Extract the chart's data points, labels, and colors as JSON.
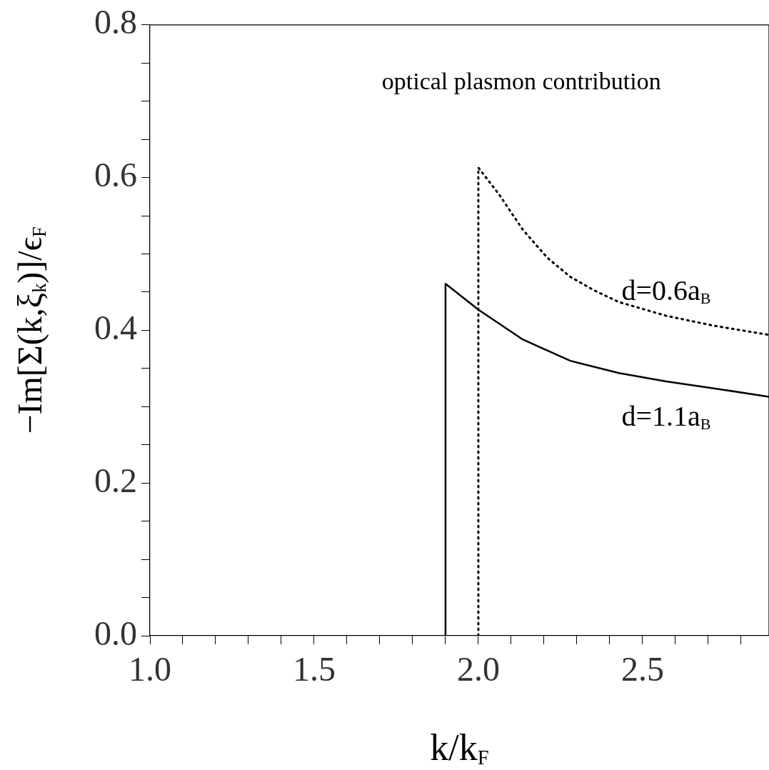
{
  "chart_data": {
    "type": "line",
    "xlabel": "k/k$_{F}$",
    "ylabel": "−Im[Σ(k,ξ$_{k}$)]/ϵ$_{F}$",
    "annotations": [
      "optical plasmon contribution"
    ],
    "xlim": [
      1.0,
      2.885
    ],
    "ylim": [
      0.0,
      0.8
    ],
    "xticks": [
      {
        "value": 1.0,
        "label": "1.0"
      },
      {
        "value": 1.1,
        "label": null
      },
      {
        "value": 1.2,
        "label": null
      },
      {
        "value": 1.3,
        "label": null
      },
      {
        "value": 1.4,
        "label": null
      },
      {
        "value": 1.5,
        "label": "1.5"
      },
      {
        "value": 1.6,
        "label": null
      },
      {
        "value": 1.7,
        "label": null
      },
      {
        "value": 1.8,
        "label": null
      },
      {
        "value": 1.9,
        "label": null
      },
      {
        "value": 2.0,
        "label": "2.0"
      },
      {
        "value": 2.1,
        "label": null
      },
      {
        "value": 2.2,
        "label": null
      },
      {
        "value": 2.3,
        "label": null
      },
      {
        "value": 2.4,
        "label": null
      },
      {
        "value": 2.5,
        "label": "2.5"
      },
      {
        "value": 2.6,
        "label": null
      },
      {
        "value": 2.7,
        "label": null
      },
      {
        "value": 2.8,
        "label": null
      }
    ],
    "yticks": [
      {
        "value": 0.0,
        "label": "0.0"
      },
      {
        "value": 0.05,
        "label": null
      },
      {
        "value": 0.1,
        "label": null
      },
      {
        "value": 0.15,
        "label": null
      },
      {
        "value": 0.2,
        "label": "0.2"
      },
      {
        "value": 0.25,
        "label": null
      },
      {
        "value": 0.3,
        "label": null
      },
      {
        "value": 0.35,
        "label": null
      },
      {
        "value": 0.4,
        "label": "0.4"
      },
      {
        "value": 0.45,
        "label": null
      },
      {
        "value": 0.5,
        "label": null
      },
      {
        "value": 0.55,
        "label": null
      },
      {
        "value": 0.6,
        "label": "0.6"
      },
      {
        "value": 0.65,
        "label": null
      },
      {
        "value": 0.7,
        "label": null
      },
      {
        "value": 0.75,
        "label": null
      },
      {
        "value": 0.8,
        "label": "0.8"
      }
    ],
    "grid": false,
    "legend": false,
    "marker": "none",
    "series": [
      {
        "name": "d=0.6a$_{B}$",
        "color": "#000000",
        "line_style": "dotted",
        "x": [
          2.0,
          2.0,
          2.063,
          2.135,
          2.21,
          2.28,
          2.354,
          2.428,
          2.572,
          2.717,
          2.885
        ],
        "values": [
          0.0,
          0.613,
          0.578,
          0.532,
          0.495,
          0.47,
          0.452,
          0.437,
          0.419,
          0.406,
          0.394
        ]
      },
      {
        "name": "d=1.1a$_{B}$",
        "color": "#000000",
        "line_style": "solid",
        "x": [
          1.9,
          1.9,
          2.0,
          2.135,
          2.28,
          2.428,
          2.572,
          2.717,
          2.885
        ],
        "values": [
          0.0,
          0.461,
          0.427,
          0.388,
          0.36,
          0.344,
          0.333,
          0.324,
          0.313
        ]
      }
    ]
  }
}
